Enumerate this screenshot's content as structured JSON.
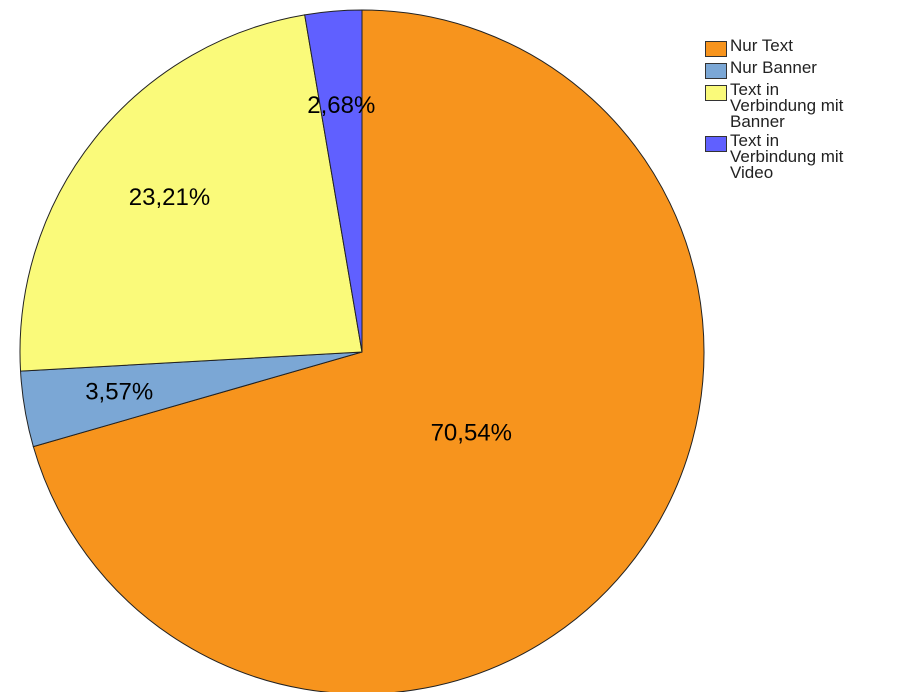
{
  "chart_data": {
    "type": "pie",
    "categories": [
      "Nur Text",
      "Nur Banner",
      "Text in Verbindung mit Banner",
      "Text in Verbindung mit Video"
    ],
    "values": [
      70.54,
      3.57,
      23.21,
      2.68
    ],
    "value_labels": [
      "70,54%",
      "3,57%",
      "23,21%",
      "2,68%"
    ],
    "colors": [
      "#f7941d",
      "#7ba7d5",
      "#fafa7a",
      "#6060ff"
    ],
    "legend": "top-right"
  }
}
